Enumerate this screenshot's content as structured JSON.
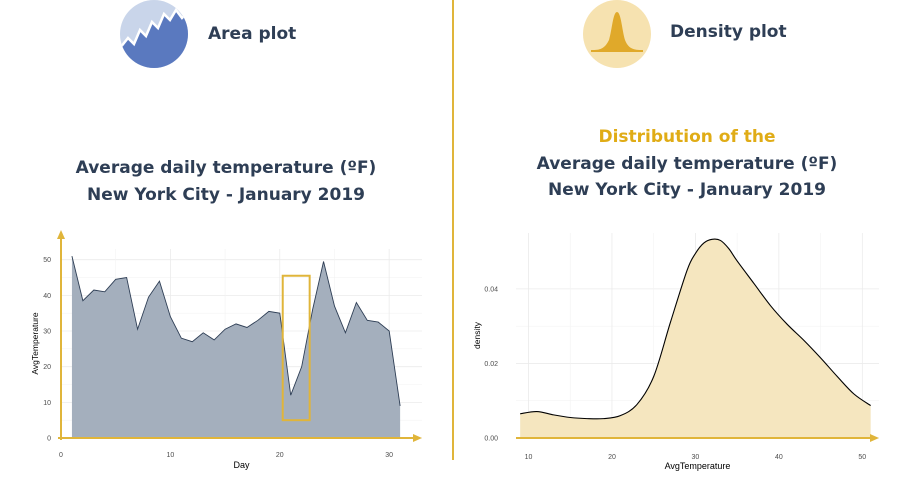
{
  "left": {
    "icon": "area-plot-icon",
    "label": "Area plot",
    "title_line1": "Average daily temperature (ºF)",
    "title_line2": "New York City - January 2019"
  },
  "right": {
    "icon": "density-plot-icon",
    "label": "Density plot",
    "title_accent": "Distribution of the",
    "title_line1": "Average daily temperature (ºF)",
    "title_line2": "New York City - January 2019"
  },
  "colors": {
    "navy": "#2e3e55",
    "gold": "#e0b53a",
    "area_fill": "#a4afbd",
    "density_fill": "#f5e6bf",
    "icon_blue": "#5a79bf",
    "icon_blue_light": "#c9d5ea",
    "icon_gold_bg": "#f6e2b0"
  },
  "chart_data": [
    {
      "type": "area",
      "xlabel": "Day",
      "ylabel": "AvgTemperature",
      "xlim": [
        0,
        33
      ],
      "ylim": [
        0,
        53
      ],
      "xticks": [
        0,
        10,
        20,
        30
      ],
      "yticks": [
        0,
        10,
        20,
        30,
        40,
        50
      ],
      "grid": true,
      "x": [
        1,
        2,
        3,
        4,
        5,
        6,
        7,
        8,
        9,
        10,
        11,
        12,
        13,
        14,
        15,
        16,
        17,
        18,
        19,
        20,
        21,
        22,
        23,
        24,
        25,
        26,
        27,
        28,
        29,
        30,
        31
      ],
      "y": [
        51,
        38.5,
        41.5,
        41,
        44.5,
        45,
        30.5,
        39.5,
        44,
        34,
        28,
        27,
        29.5,
        27.5,
        30.5,
        32,
        31,
        33,
        35.5,
        35,
        12,
        20,
        36,
        49.5,
        37,
        29.5,
        38,
        33,
        32.5,
        30,
        9
      ],
      "highlight": {
        "x": [
          21,
          22
        ],
        "y": [
          5,
          45.5
        ]
      }
    },
    {
      "type": "area",
      "subtype": "density",
      "xlabel": "AvgTemperature",
      "ylabel": "density",
      "xlim": [
        8.5,
        52
      ],
      "ylim": [
        0,
        0.055
      ],
      "xticks": [
        10,
        20,
        30,
        40,
        50
      ],
      "yticks": [
        0.0,
        0.02,
        0.04
      ],
      "ytick_labels": [
        "0.00",
        "0.02",
        "0.04"
      ],
      "grid": true,
      "x": [
        9,
        11,
        13,
        15,
        17,
        19,
        21,
        23,
        25,
        27,
        29,
        30,
        31,
        32,
        33,
        34,
        35,
        37,
        39,
        41,
        43,
        45,
        47,
        49,
        51
      ],
      "y": [
        0.0065,
        0.0071,
        0.0062,
        0.0055,
        0.0052,
        0.0052,
        0.006,
        0.009,
        0.0165,
        0.031,
        0.045,
        0.0495,
        0.0523,
        0.0533,
        0.053,
        0.0508,
        0.0475,
        0.0415,
        0.0355,
        0.0305,
        0.0262,
        0.0215,
        0.0165,
        0.0118,
        0.0087
      ]
    }
  ]
}
